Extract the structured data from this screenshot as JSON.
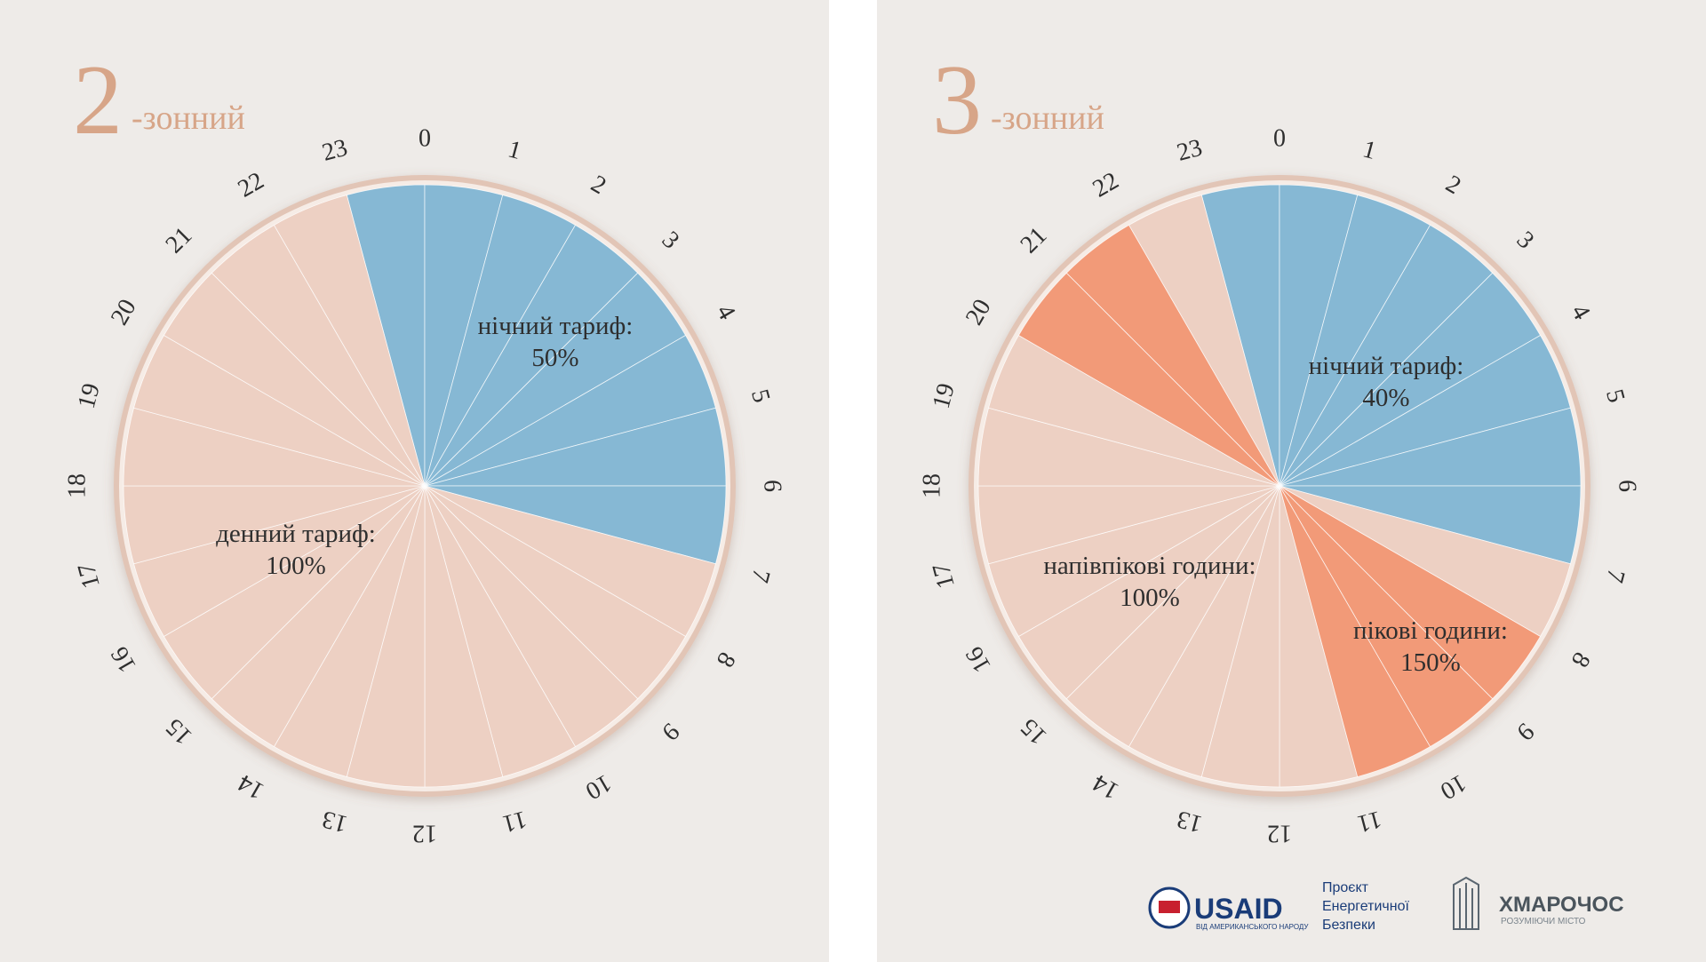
{
  "panels": [
    {
      "number": "2",
      "suffix": "-зонний",
      "hours": [
        0,
        1,
        2,
        3,
        4,
        5,
        6,
        7,
        8,
        9,
        10,
        11,
        12,
        13,
        14,
        15,
        16,
        17,
        18,
        19,
        20,
        21,
        22,
        23
      ],
      "zones": [
        {
          "label": "нічний тариф:",
          "percent": "50%",
          "color": "#86b8d4",
          "hours": [
            23,
            0,
            1,
            2,
            3,
            4,
            5,
            6
          ]
        },
        {
          "label": "денний тариф:",
          "percent": "100%",
          "color": "#edd0c3",
          "hours": [
            7,
            8,
            9,
            10,
            11,
            12,
            13,
            14,
            15,
            16,
            17,
            18,
            19,
            20,
            21,
            22
          ]
        }
      ]
    },
    {
      "number": "3",
      "suffix": "-зонний",
      "hours": [
        0,
        1,
        2,
        3,
        4,
        5,
        6,
        7,
        8,
        9,
        10,
        11,
        12,
        13,
        14,
        15,
        16,
        17,
        18,
        19,
        20,
        21,
        22,
        23
      ],
      "zones": [
        {
          "label": "нічний тариф:",
          "percent": "40%",
          "color": "#86b8d4",
          "hours": [
            23,
            0,
            1,
            2,
            3,
            4,
            5,
            6
          ]
        },
        {
          "label": "напівпікові години:",
          "percent": "100%",
          "color": "#edd0c3",
          "hours": [
            7,
            11,
            12,
            13,
            14,
            15,
            16,
            17,
            18,
            19,
            22
          ]
        },
        {
          "label": "пікові години:",
          "percent": "150%",
          "color": "#f29a78",
          "hours": [
            8,
            9,
            10,
            20,
            21
          ]
        }
      ]
    }
  ],
  "footer": {
    "usaid": "USAID",
    "usaid_sub": "ВІД АМЕРИКАНСЬКОГО НАРОДУ",
    "project": [
      "Проєкт",
      "Енергетичної",
      "Безпеки"
    ],
    "khmarochos": "ХМАРОЧОС",
    "khmarochos_sub": "РОЗУМІЮЧИ МІСТО"
  }
}
